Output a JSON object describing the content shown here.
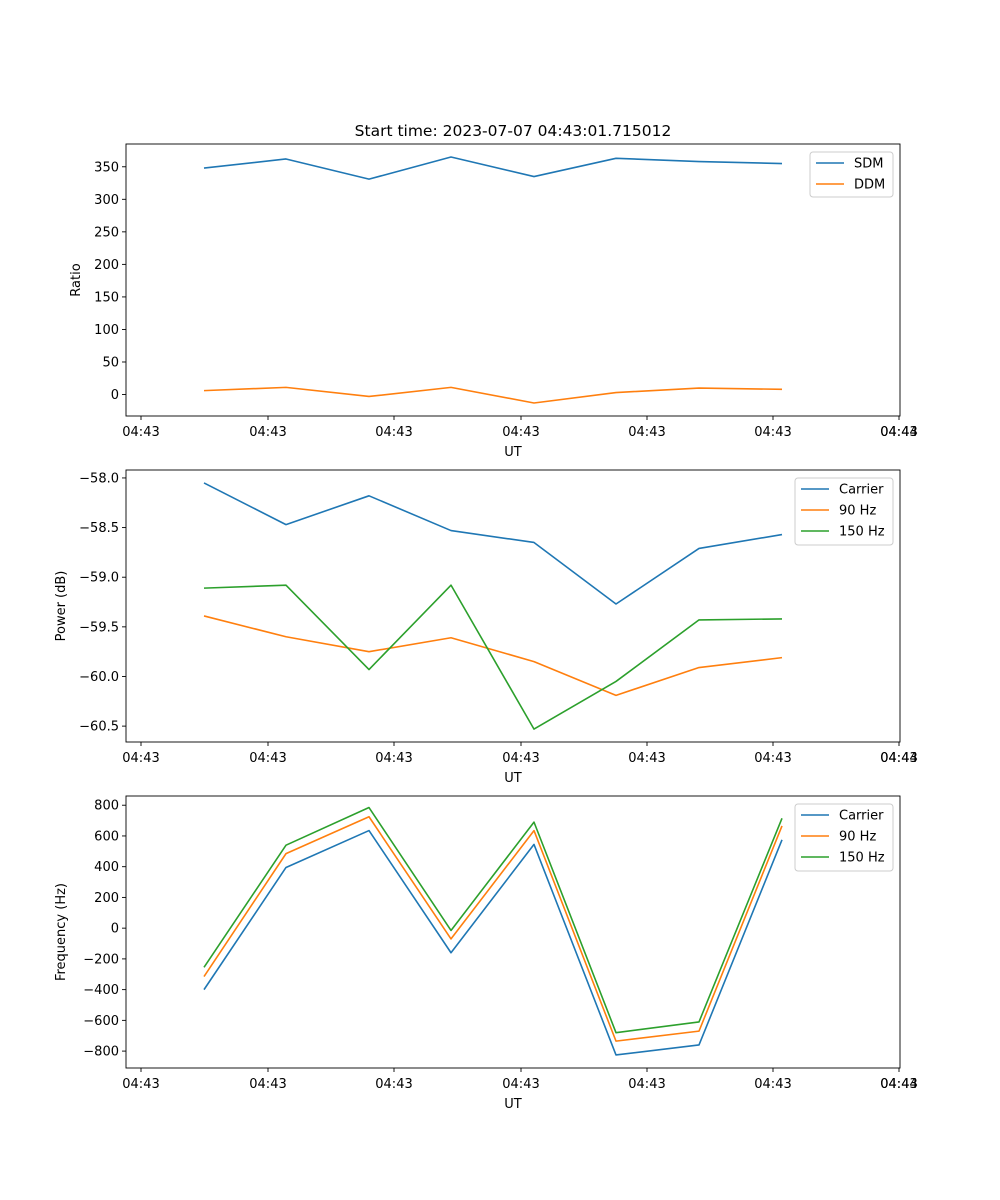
{
  "figure_title": "Start time: 2023-07-07 04:43:01.715012",
  "colors": {
    "blue": "#1f77b4",
    "orange": "#ff7f0e",
    "green": "#2ca02c"
  },
  "chart_data": [
    {
      "type": "line",
      "title": "Start time: 2023-07-07 04:43:01.715012",
      "xlabel": "UT",
      "ylabel": "Ratio",
      "x_tick_labels": [
        "04:43",
        "04:43",
        "04:43",
        "04:43",
        "04:43",
        "04:43",
        "04:43",
        "04:44"
      ],
      "y_ticks": [
        0,
        50,
        100,
        150,
        200,
        250,
        300,
        350
      ],
      "ylim": [
        -33,
        385
      ],
      "legend_position": "top-right",
      "series": [
        {
          "name": "SDM",
          "color": "#1f77b4",
          "values": [
            348,
            362,
            331,
            365,
            335,
            363,
            358,
            355
          ]
        },
        {
          "name": "DDM",
          "color": "#ff7f0e",
          "values": [
            6,
            11,
            -3,
            11,
            -13,
            3,
            10,
            8
          ]
        }
      ]
    },
    {
      "type": "line",
      "title": "",
      "xlabel": "UT",
      "ylabel": "Power (dB)",
      "x_tick_labels": [
        "04:43",
        "04:43",
        "04:43",
        "04:43",
        "04:43",
        "04:43",
        "04:43",
        "04:44"
      ],
      "y_ticks": [
        -58.0,
        -58.5,
        -59.0,
        -59.5,
        -60.0,
        -60.5
      ],
      "y_tick_labels": [
        "−58.0",
        "−58.5",
        "−59.0",
        "−59.5",
        "−60.0",
        "−60.5"
      ],
      "ylim": [
        -60.66,
        -57.92
      ],
      "legend_position": "top-right",
      "series": [
        {
          "name": "Carrier",
          "color": "#1f77b4",
          "values": [
            -58.05,
            -58.47,
            -58.18,
            -58.53,
            -58.65,
            -59.27,
            -58.71,
            -58.57
          ]
        },
        {
          "name": "90 Hz",
          "color": "#ff7f0e",
          "values": [
            -59.39,
            -59.6,
            -59.75,
            -59.61,
            -59.85,
            -60.19,
            -59.91,
            -59.81
          ]
        },
        {
          "name": "150 Hz",
          "color": "#2ca02c",
          "values": [
            -59.11,
            -59.08,
            -59.93,
            -59.08,
            -60.53,
            -60.05,
            -59.43,
            -59.42
          ]
        }
      ]
    },
    {
      "type": "line",
      "title": "",
      "xlabel": "UT",
      "ylabel": "Frequency (Hz)",
      "x_tick_labels": [
        "04:43",
        "04:43",
        "04:43",
        "04:43",
        "04:43",
        "04:43",
        "04:43",
        "04:44"
      ],
      "y_ticks": [
        800,
        600,
        400,
        200,
        0,
        -200,
        -400,
        -600,
        -800
      ],
      "y_tick_labels": [
        "800",
        "600",
        "400",
        "200",
        "0",
        "−200",
        "−400",
        "−600",
        "−800"
      ],
      "ylim": [
        -910,
        860
      ],
      "legend_position": "top-right",
      "series": [
        {
          "name": "Carrier",
          "color": "#1f77b4",
          "values": [
            -400,
            395,
            635,
            -160,
            545,
            -825,
            -760,
            575
          ]
        },
        {
          "name": "90 Hz",
          "color": "#ff7f0e",
          "values": [
            -315,
            485,
            725,
            -70,
            635,
            -735,
            -670,
            665
          ]
        },
        {
          "name": "150 Hz",
          "color": "#2ca02c",
          "values": [
            -255,
            540,
            785,
            -15,
            690,
            -680,
            -610,
            715
          ]
        }
      ]
    }
  ]
}
